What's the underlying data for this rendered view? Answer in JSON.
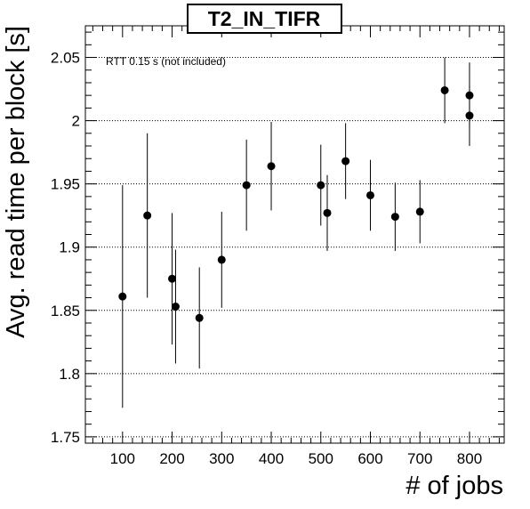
{
  "chart_data": {
    "type": "scatter",
    "title": "T2_IN_TIFR",
    "xlabel": "# of jobs",
    "ylabel": "Avg. read time per block [s]",
    "annotation": "RTT 0.15 s (not included)",
    "xlim": [
      25,
      870
    ],
    "ylim": [
      1.745,
      2.075
    ],
    "xticks": [
      "100",
      "200",
      "300",
      "400",
      "500",
      "600",
      "700",
      "800"
    ],
    "yticks": [
      "1.75",
      "1.8",
      "1.85",
      "1.9",
      "1.95",
      "2",
      "2.05"
    ],
    "grid": "y-dotted",
    "points": [
      {
        "x": 100,
        "y": 1.861,
        "err": 0.088
      },
      {
        "x": 150,
        "y": 1.925,
        "err": 0.065
      },
      {
        "x": 200,
        "y": 1.875,
        "err": 0.052
      },
      {
        "x": 207,
        "y": 1.853,
        "err": 0.045
      },
      {
        "x": 255,
        "y": 1.844,
        "err": 0.04
      },
      {
        "x": 300,
        "y": 1.89,
        "err": 0.038
      },
      {
        "x": 350,
        "y": 1.949,
        "err": 0.036
      },
      {
        "x": 400,
        "y": 1.964,
        "err": 0.035
      },
      {
        "x": 500,
        "y": 1.949,
        "err": 0.032
      },
      {
        "x": 513,
        "y": 1.927,
        "err": 0.03
      },
      {
        "x": 550,
        "y": 1.968,
        "err": 0.03
      },
      {
        "x": 600,
        "y": 1.941,
        "err": 0.028
      },
      {
        "x": 650,
        "y": 1.924,
        "err": 0.027
      },
      {
        "x": 700,
        "y": 1.928,
        "err": 0.025
      },
      {
        "x": 750,
        "y": 2.024,
        "err": 0.026
      },
      {
        "x": 800,
        "y": 2.02,
        "err": 0.026
      },
      {
        "x": 800,
        "y": 2.004,
        "err": 0.024
      }
    ]
  }
}
